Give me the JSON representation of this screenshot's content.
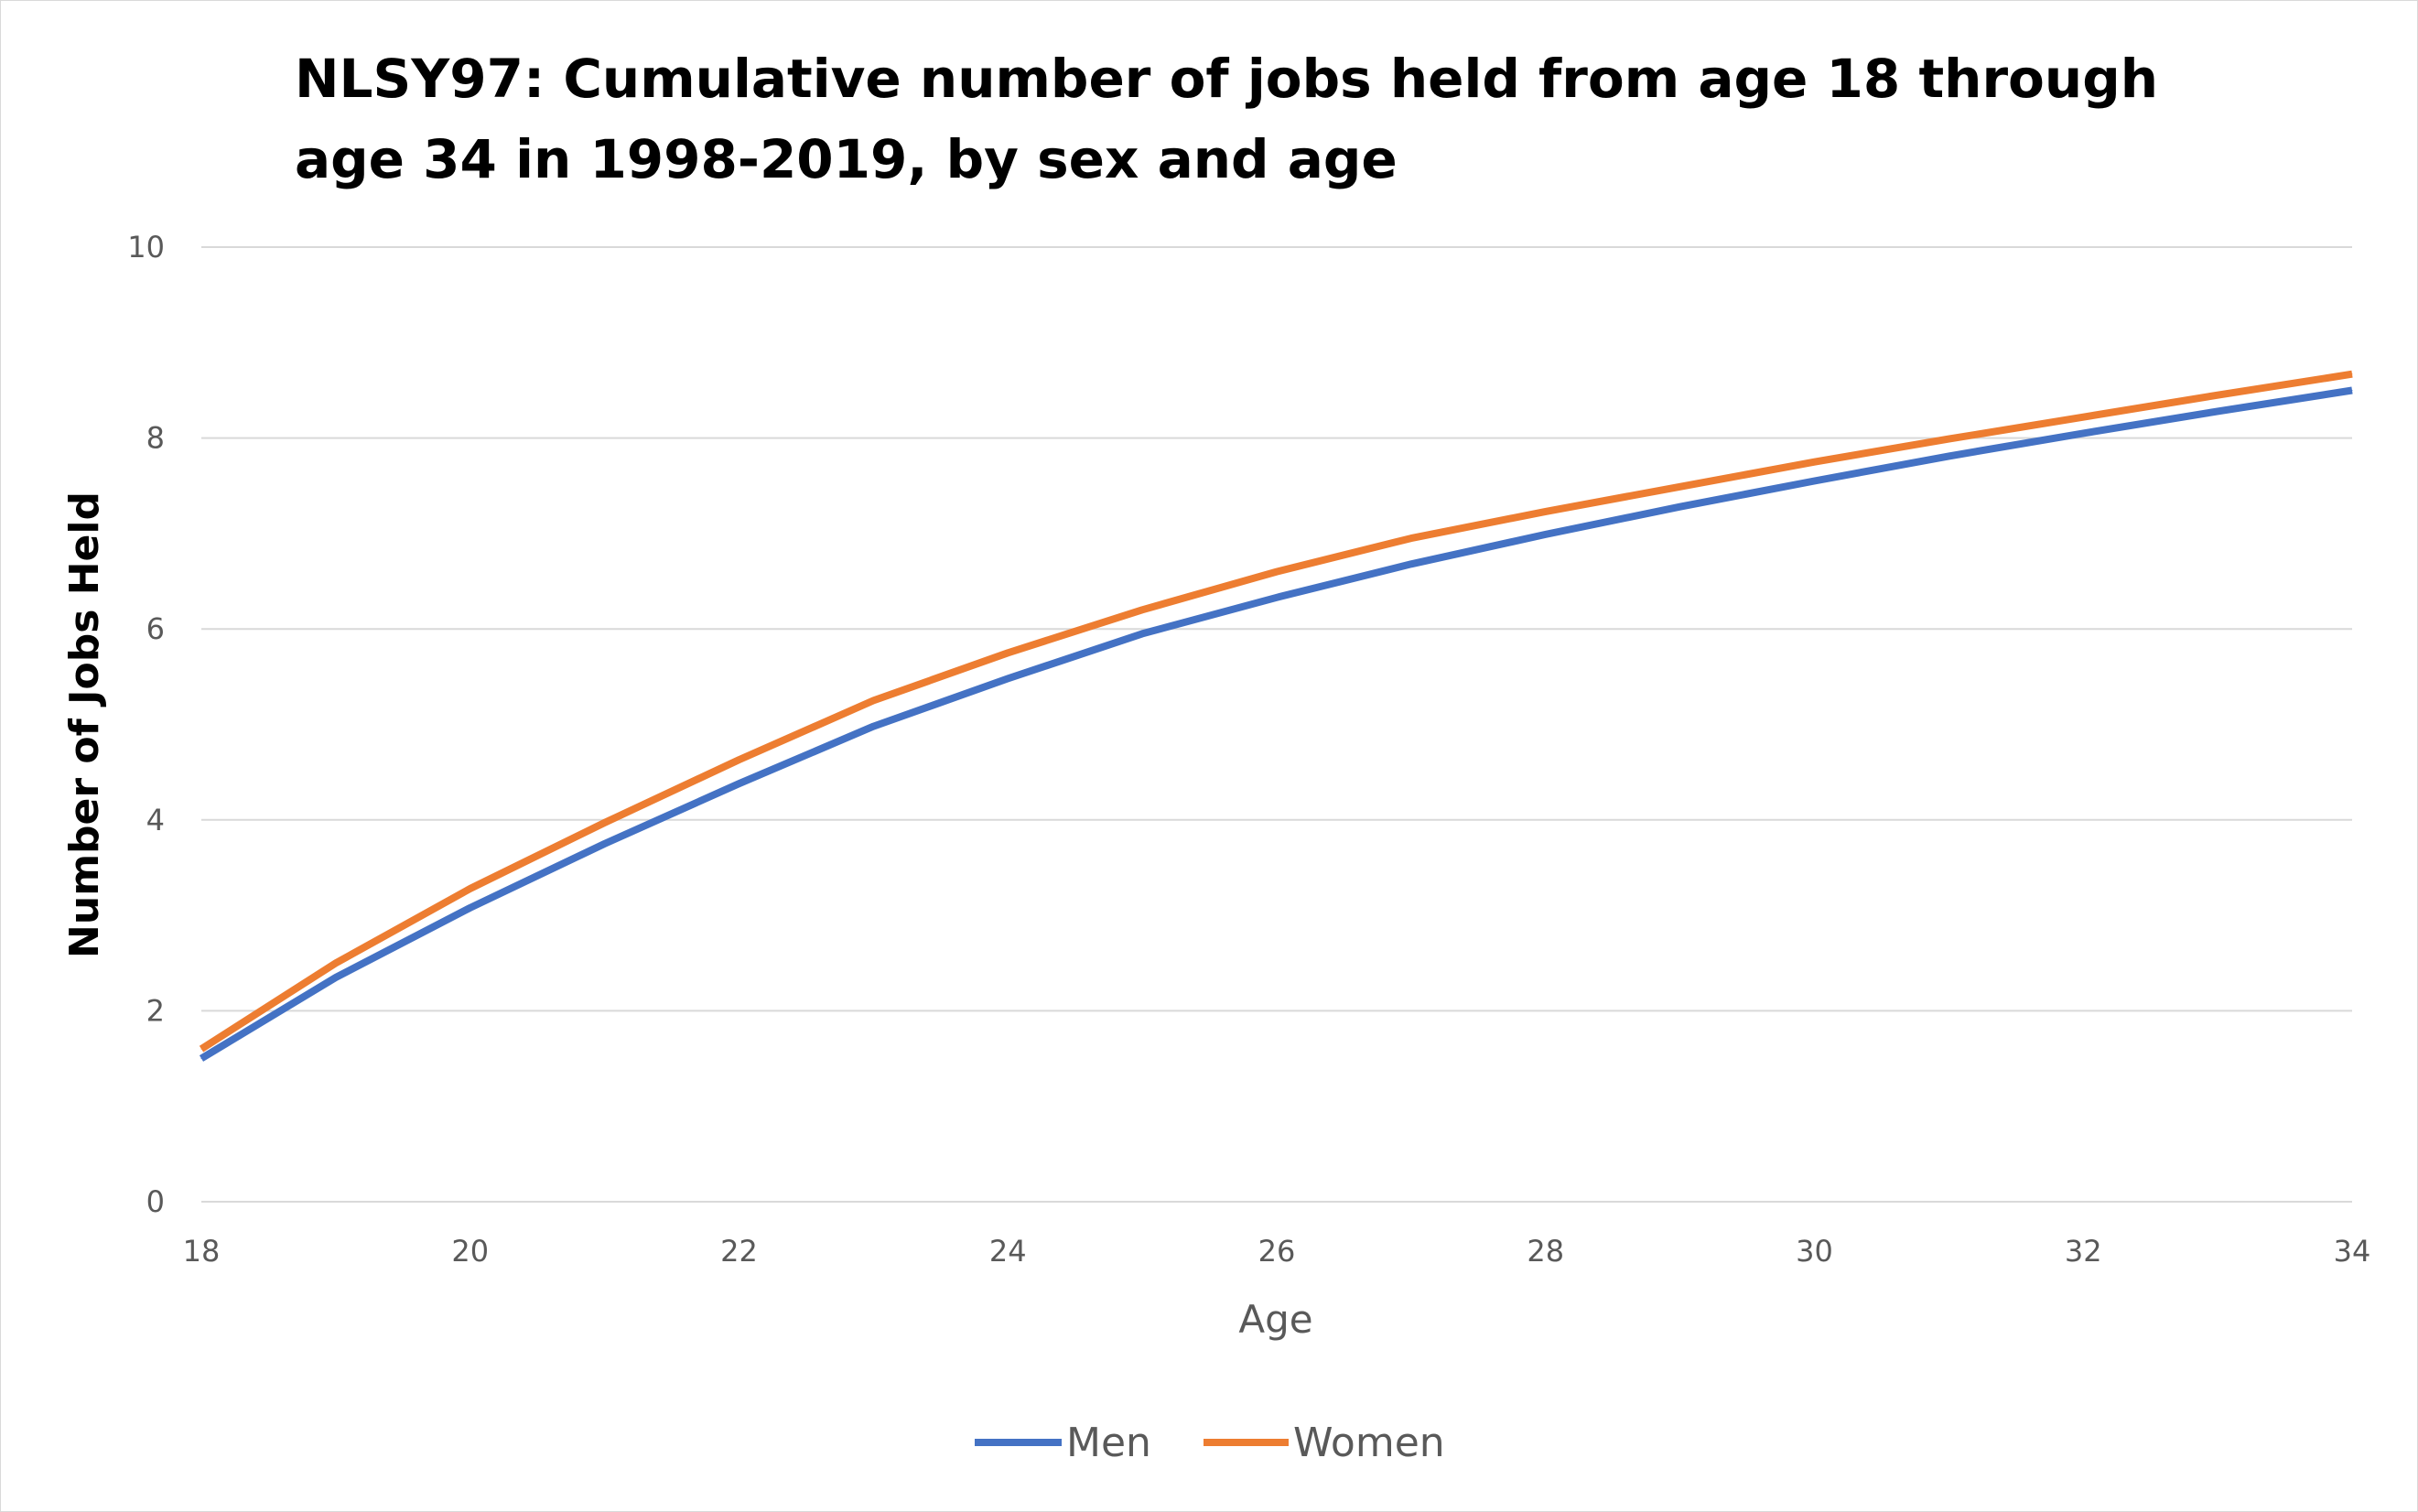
{
  "chart_data": {
    "type": "line",
    "title": "NLSY97: Cumulative number of jobs held from age 18 through age 34 in 1998-2019, by sex and age",
    "xlabel": "Age",
    "ylabel": "Number of Jobs Held",
    "x": [
      18,
      19,
      20,
      21,
      22,
      23,
      24,
      25,
      26,
      27,
      28,
      29,
      30,
      31,
      32,
      33,
      34
    ],
    "xlim": [
      18,
      34
    ],
    "ylim": [
      0,
      10
    ],
    "x_ticks": [
      "18",
      "20",
      "22",
      "24",
      "26",
      "28",
      "30",
      "32",
      "34"
    ],
    "y_ticks": [
      "0",
      "2",
      "4",
      "6",
      "8",
      "10"
    ],
    "grid": true,
    "legend_position": "bottom",
    "series": [
      {
        "name": "Men",
        "color": "#4472C4",
        "values": [
          1.5,
          2.35,
          3.08,
          3.75,
          4.38,
          4.98,
          5.48,
          5.95,
          6.33,
          6.68,
          6.99,
          7.28,
          7.55,
          7.81,
          8.05,
          8.28,
          8.5
        ]
      },
      {
        "name": "Women",
        "color": "#ED7D31",
        "values": [
          1.6,
          2.5,
          3.28,
          3.97,
          4.63,
          5.25,
          5.75,
          6.2,
          6.6,
          6.95,
          7.23,
          7.49,
          7.75,
          7.99,
          8.22,
          8.45,
          8.67
        ]
      }
    ]
  }
}
